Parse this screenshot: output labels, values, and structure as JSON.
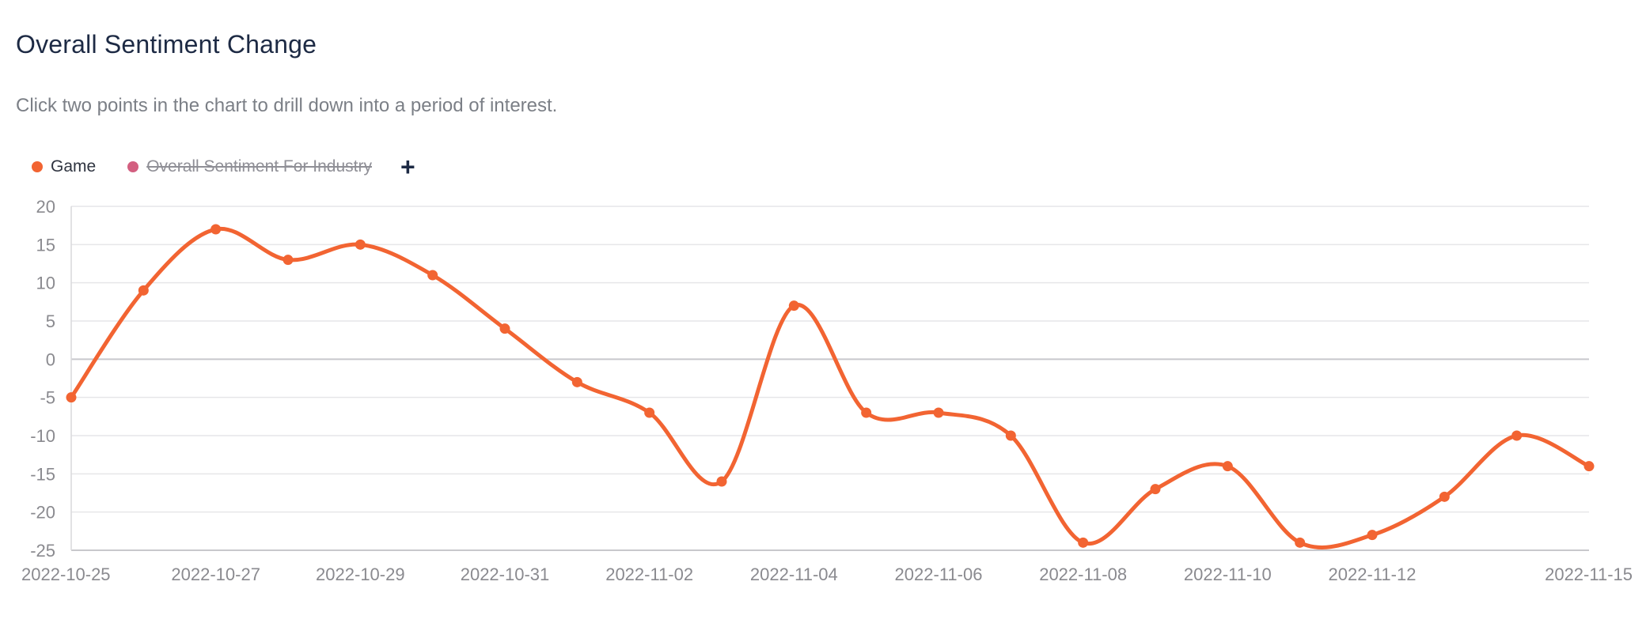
{
  "header": {
    "title": "Overall Sentiment Change",
    "subtitle": "Click two points in the chart to drill down into a period of interest."
  },
  "legend": {
    "items": [
      {
        "label": "Game",
        "color": "#f26432",
        "hidden": false
      },
      {
        "label": "Overall Sentiment For Industry",
        "color": "#d35f80",
        "hidden": true
      }
    ],
    "add_label": "+"
  },
  "chart_data": {
    "type": "line",
    "smooth": true,
    "ylim": [
      -25,
      20
    ],
    "yticks": [
      -25,
      -20,
      -15,
      -10,
      -5,
      0,
      5,
      10,
      15,
      20
    ],
    "y_tick_labels": [
      "-25",
      "-20",
      "-15",
      "-10",
      "-5",
      "0",
      "5",
      "10",
      "15",
      "20"
    ],
    "x_tick_labels": [
      "2022-10-25",
      "2022-10-27",
      "2022-10-29",
      "2022-10-31",
      "2022-11-02",
      "2022-11-04",
      "2022-11-06",
      "2022-11-08",
      "2022-11-10",
      "2022-11-12",
      "2022-11-15"
    ],
    "x_tick_dates": [
      "2022-10-25",
      "2022-10-27",
      "2022-10-29",
      "2022-10-31",
      "2022-11-02",
      "2022-11-04",
      "2022-11-06",
      "2022-11-08",
      "2022-11-10",
      "2022-11-12",
      "2022-11-15"
    ],
    "grid": true,
    "legend_position": "top-left",
    "series": [
      {
        "name": "Game",
        "color": "#f26432",
        "points": [
          {
            "x": "2022-10-25",
            "y": -5
          },
          {
            "x": "2022-10-26",
            "y": 9
          },
          {
            "x": "2022-10-27",
            "y": 17
          },
          {
            "x": "2022-10-28",
            "y": 13
          },
          {
            "x": "2022-10-29",
            "y": 15
          },
          {
            "x": "2022-10-30",
            "y": 11
          },
          {
            "x": "2022-10-31",
            "y": 4
          },
          {
            "x": "2022-11-01",
            "y": -3
          },
          {
            "x": "2022-11-02",
            "y": -7
          },
          {
            "x": "2022-11-03",
            "y": -16
          },
          {
            "x": "2022-11-04",
            "y": 7
          },
          {
            "x": "2022-11-05",
            "y": -7
          },
          {
            "x": "2022-11-06",
            "y": -7
          },
          {
            "x": "2022-11-07",
            "y": -10
          },
          {
            "x": "2022-11-08",
            "y": -24
          },
          {
            "x": "2022-11-09",
            "y": -17
          },
          {
            "x": "2022-11-10",
            "y": -14
          },
          {
            "x": "2022-11-11",
            "y": -24
          },
          {
            "x": "2022-11-12",
            "y": -23
          },
          {
            "x": "2022-11-13",
            "y": -18
          },
          {
            "x": "2022-11-14",
            "y": -10
          },
          {
            "x": "2022-11-15",
            "y": -14
          }
        ]
      }
    ]
  }
}
